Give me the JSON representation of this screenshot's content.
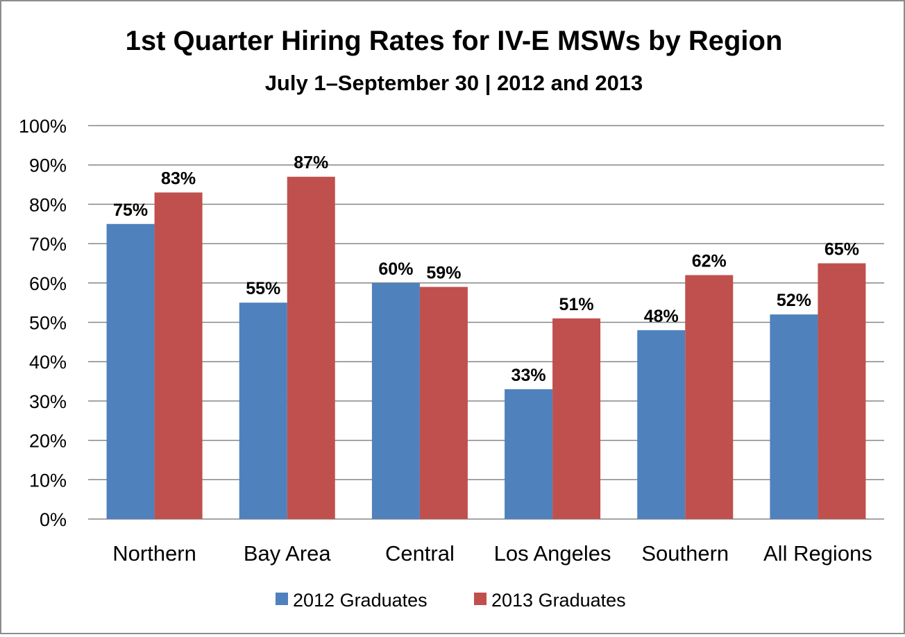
{
  "chart_data": {
    "type": "bar",
    "title": "1st Quarter Hiring Rates for IV-E MSWs by Region",
    "subtitle": "July 1–September 30 | 2012 and 2013",
    "categories": [
      "Northern",
      "Bay Area",
      "Central",
      "Los Angeles",
      "Southern",
      "All Regions"
    ],
    "series": [
      {
        "name": "2012 Graduates",
        "color": "#4f81bd",
        "values": [
          75,
          55,
          60,
          33,
          48,
          52
        ],
        "labels": [
          "75%",
          "55%",
          "60%",
          "33%",
          "48%",
          "52%"
        ]
      },
      {
        "name": "2013 Graduates",
        "color": "#c0504d",
        "values": [
          83,
          87,
          59,
          51,
          62,
          65
        ],
        "labels": [
          "83%",
          "87%",
          "59%",
          "51%",
          "62%",
          "65%"
        ]
      }
    ],
    "ylim": [
      0,
      100
    ],
    "yticks": [
      0,
      10,
      20,
      30,
      40,
      50,
      60,
      70,
      80,
      90,
      100
    ],
    "ytick_labels": [
      "0%",
      "10%",
      "20%",
      "30%",
      "40%",
      "50%",
      "60%",
      "70%",
      "80%",
      "90%",
      "100%"
    ],
    "grid": true,
    "legend_position": "bottom"
  }
}
